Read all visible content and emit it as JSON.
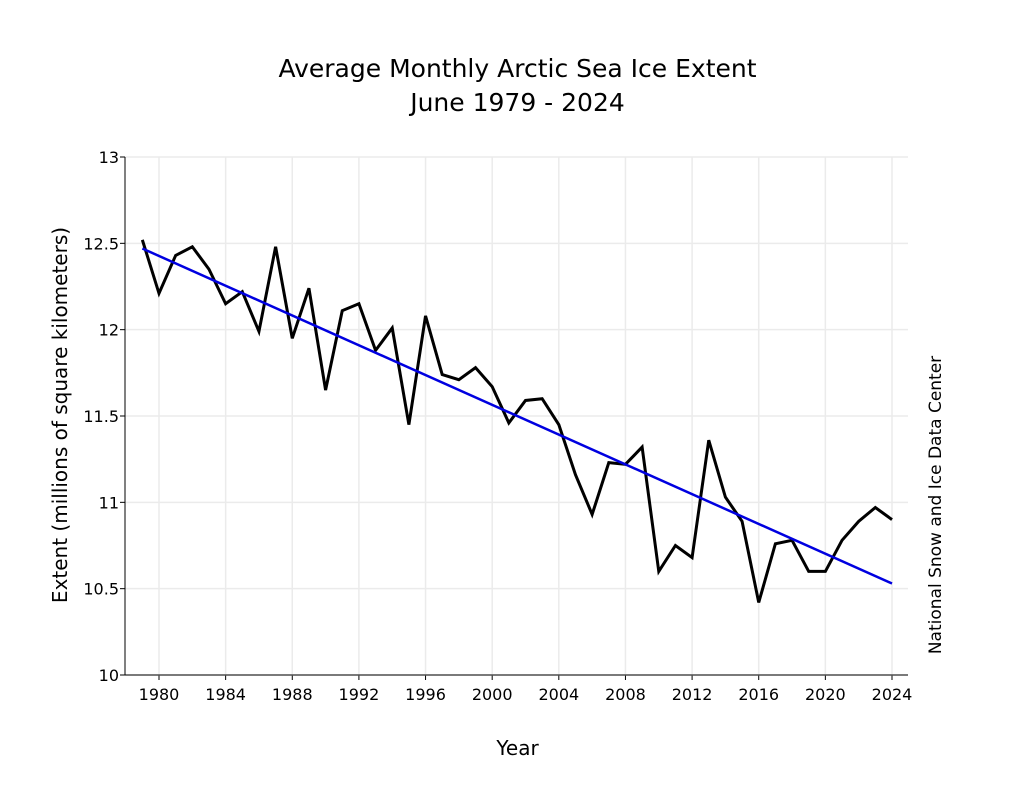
{
  "chart_data": {
    "type": "line",
    "title": "Average Monthly Arctic Sea Ice Extent",
    "subtitle": "June 1979 - 2024",
    "xlabel": "Year",
    "ylabel": "Extent (millions of square kilometers)",
    "credit": "National Snow and Ice Data Center",
    "xlim": [
      1977.9,
      2024.9
    ],
    "ylim": [
      10,
      13
    ],
    "xticks": [
      "1980",
      "1984",
      "1988",
      "1992",
      "1996",
      "2000",
      "2004",
      "2008",
      "2012",
      "2016",
      "2020",
      "2024"
    ],
    "yticks": [
      "10",
      "10.5",
      "11",
      "11.5",
      "12",
      "12.5",
      "13"
    ],
    "grid": true,
    "x": [
      1979,
      1980,
      1981,
      1982,
      1983,
      1984,
      1985,
      1986,
      1987,
      1988,
      1989,
      1990,
      1991,
      1992,
      1993,
      1994,
      1995,
      1996,
      1997,
      1998,
      1999,
      2000,
      2001,
      2002,
      2003,
      2004,
      2005,
      2006,
      2007,
      2008,
      2009,
      2010,
      2011,
      2012,
      2013,
      2014,
      2015,
      2016,
      2017,
      2018,
      2019,
      2020,
      2021,
      2022,
      2023,
      2024
    ],
    "series": [
      {
        "values": [
          12.52,
          12.21,
          12.43,
          12.48,
          12.35,
          12.15,
          12.22,
          11.99,
          12.48,
          11.95,
          12.24,
          11.65,
          12.11,
          12.15,
          11.88,
          12.01,
          11.45,
          12.08,
          11.74,
          11.71,
          11.78,
          11.67,
          11.46,
          11.59,
          11.6,
          11.45,
          11.16,
          10.93,
          11.23,
          11.22,
          11.32,
          10.6,
          10.75,
          10.68,
          11.36,
          11.03,
          10.89,
          10.42,
          10.76,
          10.78,
          10.6,
          10.6,
          10.78,
          10.89,
          10.97,
          10.9
        ],
        "color": "#000000"
      }
    ],
    "trend": {
      "x": [
        1979,
        2024
      ],
      "values": [
        12.47,
        10.53
      ],
      "color": "#0000e0"
    }
  }
}
